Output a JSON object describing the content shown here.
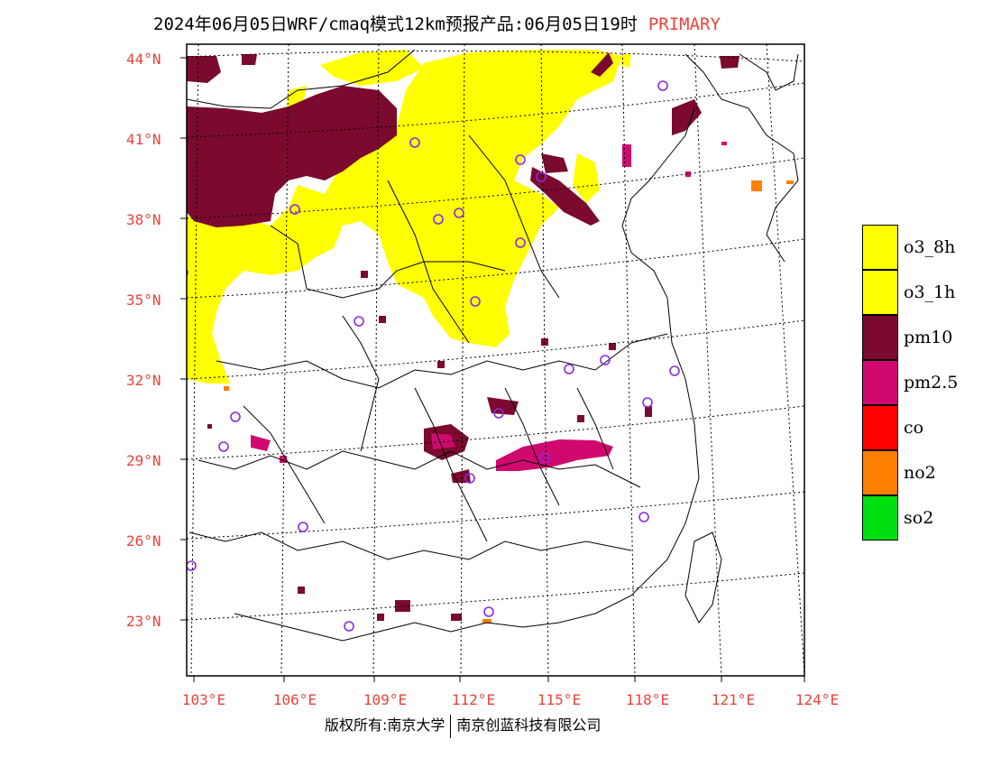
{
  "title": {
    "main": "2024年06月05日WRF/cmaq模式12km预报产品:06月05日19时",
    "tag": "PRIMARY"
  },
  "axes": {
    "lat_labels": [
      "44°N",
      "41°N",
      "38°N",
      "35°N",
      "32°N",
      "29°N",
      "26°N",
      "23°N"
    ],
    "lon_labels": [
      "103°E",
      "106°E",
      "109°E",
      "112°E",
      "115°E",
      "118°E",
      "121°E",
      "124°E"
    ]
  },
  "legend": {
    "items": [
      {
        "label": "o3_8h",
        "color": "#ffff00"
      },
      {
        "label": "o3_1h",
        "color": "#ffff00"
      },
      {
        "label": "pm10",
        "color": "#7b0a2e"
      },
      {
        "label": "pm2.5",
        "color": "#d1096f"
      },
      {
        "label": "co",
        "color": "#ff0000"
      },
      {
        "label": "no2",
        "color": "#ff8000"
      },
      {
        "label": "so2",
        "color": "#00e010"
      }
    ]
  },
  "footer": {
    "left": "版权所有:南京大学",
    "right": "南京创蓝科技有限公司"
  },
  "colors": {
    "accent": "#e8443c",
    "o3": "#ffff00",
    "pm10": "#7b0a2e",
    "pm25": "#d1096f",
    "no2": "#ff8000",
    "station": "#8a2be2"
  }
}
